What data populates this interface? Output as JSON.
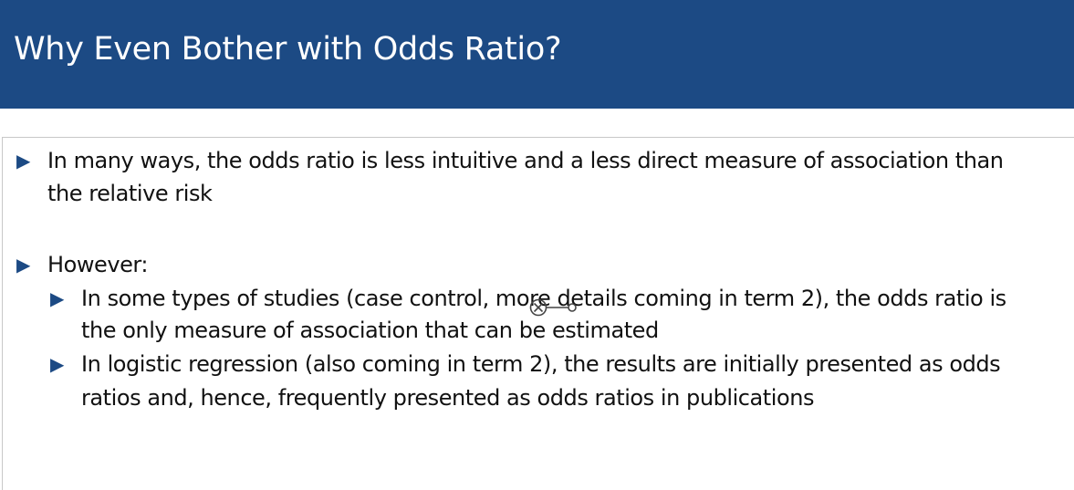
{
  "slide": {
    "title": "Why Even Bother with Odds Ratio?",
    "bullets": [
      {
        "line1": "In many ways, the odds ratio is less intuitive and a less direct measure of association than",
        "line2": "the relative risk"
      },
      {
        "line1": "However:",
        "sub_bullets": [
          {
            "line1": "In some types of studies (case control, more details coming in term 2), the odds ratio is",
            "line2": "the only measure of association that can be estimated"
          },
          {
            "line1": "In logistic regression (also coming in term 2), the results are initially presented as odds",
            "line2": "ratios and, hence, frequently presented as odds ratios in publications"
          }
        ]
      }
    ]
  },
  "colors": {
    "title_bar": "#1c4a84",
    "bullet": "#1c4a84",
    "text": "#111111"
  },
  "icons": {
    "bullet": "triangle-right-icon",
    "cursor": "cursor-icon"
  }
}
